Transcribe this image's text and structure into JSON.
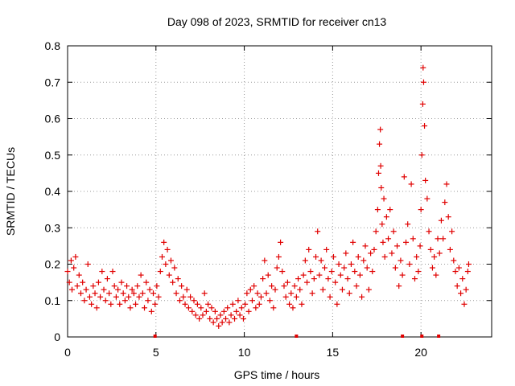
{
  "chart_data": {
    "type": "scatter",
    "title": "Day 098 of 2023, SRMTID for receiver cn13",
    "xlabel": "GPS time / hours",
    "ylabel": "SRMTID / TECUs",
    "xlim": [
      0,
      24
    ],
    "ylim": [
      0,
      0.8
    ],
    "x_ticks": [
      "0",
      "5",
      "10",
      "15",
      "20"
    ],
    "x_tick_values": [
      0,
      5,
      10,
      15,
      20
    ],
    "y_ticks": [
      "0",
      "0.1",
      "0.2",
      "0.3",
      "0.4",
      "0.5",
      "0.6",
      "0.7",
      "0.8"
    ],
    "y_tick_values": [
      0,
      0.1,
      0.2,
      0.3,
      0.4,
      0.5,
      0.6,
      0.7,
      0.8
    ],
    "grid": true,
    "marker": "+",
    "color": "#e00000",
    "series": [
      {
        "name": "SRMTID",
        "points": [
          [
            0.0,
            0.18
          ],
          [
            0.1,
            0.15
          ],
          [
            0.2,
            0.21
          ],
          [
            0.25,
            0.13
          ],
          [
            0.35,
            0.19
          ],
          [
            0.45,
            0.22
          ],
          [
            0.55,
            0.14
          ],
          [
            0.65,
            0.17
          ],
          [
            0.75,
            0.12
          ],
          [
            0.85,
            0.15
          ],
          [
            0.95,
            0.1
          ],
          [
            1.05,
            0.13
          ],
          [
            1.15,
            0.2
          ],
          [
            1.25,
            0.11
          ],
          [
            1.35,
            0.09
          ],
          [
            1.45,
            0.14
          ],
          [
            1.55,
            0.12
          ],
          [
            1.65,
            0.08
          ],
          [
            1.75,
            0.15
          ],
          [
            1.85,
            0.11
          ],
          [
            1.95,
            0.18
          ],
          [
            2.05,
            0.13
          ],
          [
            2.15,
            0.1
          ],
          [
            2.25,
            0.16
          ],
          [
            2.35,
            0.12
          ],
          [
            2.45,
            0.09
          ],
          [
            2.55,
            0.18
          ],
          [
            2.65,
            0.14
          ],
          [
            2.75,
            0.11
          ],
          [
            2.85,
            0.13
          ],
          [
            2.95,
            0.09
          ],
          [
            3.05,
            0.15
          ],
          [
            3.15,
            0.12
          ],
          [
            3.25,
            0.1
          ],
          [
            3.35,
            0.14
          ],
          [
            3.45,
            0.11
          ],
          [
            3.55,
            0.08
          ],
          [
            3.65,
            0.13
          ],
          [
            3.75,
            0.12
          ],
          [
            3.85,
            0.09
          ],
          [
            3.95,
            0.14
          ],
          [
            4.05,
            0.11
          ],
          [
            4.15,
            0.17
          ],
          [
            4.25,
            0.12
          ],
          [
            4.35,
            0.08
          ],
          [
            4.45,
            0.15
          ],
          [
            4.55,
            0.1
          ],
          [
            4.65,
            0.13
          ],
          [
            4.75,
            0.07
          ],
          [
            4.85,
            0.12
          ],
          [
            4.95,
            0.09
          ],
          [
            5.05,
            0.14
          ],
          [
            5.15,
            0.11
          ],
          [
            5.25,
            0.18
          ],
          [
            5.35,
            0.22
          ],
          [
            5.45,
            0.26
          ],
          [
            5.55,
            0.2
          ],
          [
            5.65,
            0.24
          ],
          [
            5.75,
            0.17
          ],
          [
            5.85,
            0.21
          ],
          [
            5.95,
            0.15
          ],
          [
            6.05,
            0.19
          ],
          [
            6.15,
            0.12
          ],
          [
            6.25,
            0.16
          ],
          [
            6.35,
            0.1
          ],
          [
            6.45,
            0.14
          ],
          [
            6.55,
            0.11
          ],
          [
            6.65,
            0.09
          ],
          [
            6.75,
            0.13
          ],
          [
            6.85,
            0.08
          ],
          [
            6.95,
            0.11
          ],
          [
            7.05,
            0.07
          ],
          [
            7.15,
            0.1
          ],
          [
            7.25,
            0.06
          ],
          [
            7.35,
            0.09
          ],
          [
            7.45,
            0.05
          ],
          [
            7.55,
            0.08
          ],
          [
            7.65,
            0.06
          ],
          [
            7.75,
            0.12
          ],
          [
            7.85,
            0.07
          ],
          [
            7.95,
            0.09
          ],
          [
            8.05,
            0.05
          ],
          [
            8.15,
            0.08
          ],
          [
            8.25,
            0.04
          ],
          [
            8.35,
            0.07
          ],
          [
            8.45,
            0.05
          ],
          [
            8.55,
            0.03
          ],
          [
            8.65,
            0.06
          ],
          [
            8.75,
            0.04
          ],
          [
            8.85,
            0.07
          ],
          [
            8.95,
            0.05
          ],
          [
            9.05,
            0.08
          ],
          [
            9.15,
            0.04
          ],
          [
            9.25,
            0.06
          ],
          [
            9.35,
            0.09
          ],
          [
            9.45,
            0.05
          ],
          [
            9.55,
            0.07
          ],
          [
            9.65,
            0.1
          ],
          [
            9.75,
            0.06
          ],
          [
            9.85,
            0.08
          ],
          [
            9.95,
            0.05
          ],
          [
            10.05,
            0.09
          ],
          [
            10.15,
            0.12
          ],
          [
            10.25,
            0.07
          ],
          [
            10.35,
            0.13
          ],
          [
            10.45,
            0.1
          ],
          [
            10.55,
            0.14
          ],
          [
            10.65,
            0.08
          ],
          [
            10.75,
            0.12
          ],
          [
            10.85,
            0.09
          ],
          [
            10.95,
            0.11
          ],
          [
            11.05,
            0.16
          ],
          [
            11.15,
            0.21
          ],
          [
            11.25,
            0.12
          ],
          [
            11.35,
            0.17
          ],
          [
            11.45,
            0.1
          ],
          [
            11.55,
            0.14
          ],
          [
            11.65,
            0.08
          ],
          [
            11.75,
            0.13
          ],
          [
            11.85,
            0.19
          ],
          [
            11.95,
            0.22
          ],
          [
            12.05,
            0.26
          ],
          [
            12.15,
            0.18
          ],
          [
            12.25,
            0.14
          ],
          [
            12.35,
            0.11
          ],
          [
            12.45,
            0.15
          ],
          [
            12.55,
            0.09
          ],
          [
            12.65,
            0.12
          ],
          [
            12.75,
            0.08
          ],
          [
            12.85,
            0.14
          ],
          [
            12.95,
            0.11
          ],
          [
            13.05,
            0.16
          ],
          [
            13.15,
            0.13
          ],
          [
            13.25,
            0.09
          ],
          [
            13.35,
            0.17
          ],
          [
            13.45,
            0.21
          ],
          [
            13.55,
            0.15
          ],
          [
            13.65,
            0.24
          ],
          [
            13.75,
            0.18
          ],
          [
            13.85,
            0.12
          ],
          [
            13.95,
            0.16
          ],
          [
            14.05,
            0.22
          ],
          [
            14.15,
            0.29
          ],
          [
            14.25,
            0.17
          ],
          [
            14.35,
            0.21
          ],
          [
            14.45,
            0.13
          ],
          [
            14.55,
            0.19
          ],
          [
            14.65,
            0.24
          ],
          [
            14.75,
            0.16
          ],
          [
            14.85,
            0.11
          ],
          [
            14.95,
            0.18
          ],
          [
            15.05,
            0.22
          ],
          [
            15.15,
            0.15
          ],
          [
            15.25,
            0.09
          ],
          [
            15.35,
            0.2
          ],
          [
            15.45,
            0.17
          ],
          [
            15.55,
            0.13
          ],
          [
            15.65,
            0.19
          ],
          [
            15.75,
            0.23
          ],
          [
            15.85,
            0.16
          ],
          [
            15.95,
            0.12
          ],
          [
            16.05,
            0.2
          ],
          [
            16.15,
            0.26
          ],
          [
            16.25,
            0.18
          ],
          [
            16.35,
            0.14
          ],
          [
            16.45,
            0.22
          ],
          [
            16.55,
            0.17
          ],
          [
            16.65,
            0.11
          ],
          [
            16.75,
            0.21
          ],
          [
            16.85,
            0.25
          ],
          [
            16.95,
            0.19
          ],
          [
            17.05,
            0.13
          ],
          [
            17.15,
            0.23
          ],
          [
            17.25,
            0.18
          ],
          [
            17.35,
            0.24
          ],
          [
            17.45,
            0.29
          ],
          [
            17.55,
            0.35
          ],
          [
            17.6,
            0.45
          ],
          [
            17.65,
            0.53
          ],
          [
            17.7,
            0.57
          ],
          [
            17.72,
            0.47
          ],
          [
            17.75,
            0.41
          ],
          [
            17.8,
            0.31
          ],
          [
            17.85,
            0.26
          ],
          [
            17.9,
            0.38
          ],
          [
            17.95,
            0.22
          ],
          [
            18.05,
            0.33
          ],
          [
            18.15,
            0.27
          ],
          [
            18.25,
            0.35
          ],
          [
            18.35,
            0.23
          ],
          [
            18.45,
            0.29
          ],
          [
            18.55,
            0.19
          ],
          [
            18.65,
            0.25
          ],
          [
            18.75,
            0.14
          ],
          [
            18.85,
            0.21
          ],
          [
            18.95,
            0.17
          ],
          [
            19.05,
            0.44
          ],
          [
            19.15,
            0.26
          ],
          [
            19.25,
            0.31
          ],
          [
            19.35,
            0.2
          ],
          [
            19.45,
            0.42
          ],
          [
            19.55,
            0.27
          ],
          [
            19.65,
            0.16
          ],
          [
            19.75,
            0.22
          ],
          [
            19.85,
            0.18
          ],
          [
            19.95,
            0.25
          ],
          [
            20.0,
            0.35
          ],
          [
            20.05,
            0.5
          ],
          [
            20.1,
            0.64
          ],
          [
            20.12,
            0.74
          ],
          [
            20.15,
            0.7
          ],
          [
            20.2,
            0.58
          ],
          [
            20.25,
            0.43
          ],
          [
            20.35,
            0.38
          ],
          [
            20.45,
            0.29
          ],
          [
            20.55,
            0.24
          ],
          [
            20.65,
            0.19
          ],
          [
            20.75,
            0.22
          ],
          [
            20.85,
            0.17
          ],
          [
            20.95,
            0.27
          ],
          [
            21.05,
            0.23
          ],
          [
            21.15,
            0.32
          ],
          [
            21.25,
            0.27
          ],
          [
            21.35,
            0.37
          ],
          [
            21.45,
            0.42
          ],
          [
            21.55,
            0.33
          ],
          [
            21.65,
            0.24
          ],
          [
            21.75,
            0.29
          ],
          [
            21.85,
            0.21
          ],
          [
            21.95,
            0.18
          ],
          [
            22.05,
            0.14
          ],
          [
            22.15,
            0.19
          ],
          [
            22.25,
            0.12
          ],
          [
            22.35,
            0.16
          ],
          [
            22.45,
            0.09
          ],
          [
            22.55,
            0.13
          ],
          [
            22.65,
            0.18
          ],
          [
            22.7,
            0.2
          ]
        ]
      }
    ],
    "zero_markers_x": [
      4.95,
      12.95,
      18.95,
      20.05,
      21.0
    ]
  }
}
